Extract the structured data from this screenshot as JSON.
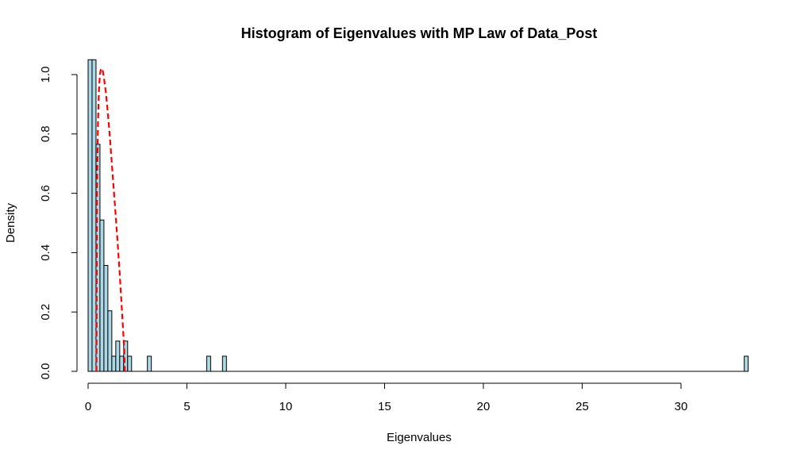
{
  "chart_data": {
    "type": "bar",
    "title": "Histogram of Eigenvalues with MP Law of Data_Post",
    "xlabel": "Eigenvalues",
    "ylabel": "Density",
    "xlim": [
      0,
      33.5
    ],
    "ylim": [
      0,
      1.05
    ],
    "x_ticks": [
      "0",
      "5",
      "10",
      "15",
      "20",
      "25",
      "30"
    ],
    "y_ticks": [
      "0.0",
      "0.2",
      "0.4",
      "0.6",
      "0.8",
      "1.0"
    ],
    "bin_width": 0.2,
    "bins": [
      {
        "x0": 0.0,
        "density": 1.05
      },
      {
        "x0": 0.2,
        "density": 1.05
      },
      {
        "x0": 0.4,
        "density": 0.765
      },
      {
        "x0": 0.6,
        "density": 0.51
      },
      {
        "x0": 0.8,
        "density": 0.357
      },
      {
        "x0": 1.0,
        "density": 0.204
      },
      {
        "x0": 1.2,
        "density": 0.051
      },
      {
        "x0": 1.4,
        "density": 0.102
      },
      {
        "x0": 1.6,
        "density": 0.051
      },
      {
        "x0": 1.8,
        "density": 0.102
      },
      {
        "x0": 2.0,
        "density": 0.051
      },
      {
        "x0": 3.0,
        "density": 0.051
      },
      {
        "x0": 6.0,
        "density": 0.051
      },
      {
        "x0": 6.8,
        "density": 0.051
      },
      {
        "x0": 33.2,
        "density": 0.051
      }
    ],
    "bar_fill": "#add8e6",
    "bar_stroke": "#000000",
    "mp_curve": {
      "style": "dashed",
      "color": "#ff0000",
      "lambda_min": 0.42,
      "lambda_max": 1.86,
      "points": [
        [
          0.42,
          0.0
        ],
        [
          0.45,
          0.62
        ],
        [
          0.5,
          0.84
        ],
        [
          0.55,
          0.95
        ],
        [
          0.6,
          1.0
        ],
        [
          0.65,
          1.02
        ],
        [
          0.7,
          1.02
        ],
        [
          0.75,
          1.01
        ],
        [
          0.8,
          0.99
        ],
        [
          0.9,
          0.94
        ],
        [
          1.0,
          0.87
        ],
        [
          1.1,
          0.79
        ],
        [
          1.2,
          0.7
        ],
        [
          1.3,
          0.61
        ],
        [
          1.4,
          0.52
        ],
        [
          1.5,
          0.43
        ],
        [
          1.6,
          0.33
        ],
        [
          1.7,
          0.22
        ],
        [
          1.78,
          0.13
        ],
        [
          1.83,
          0.07
        ],
        [
          1.86,
          0.0
        ]
      ]
    }
  }
}
